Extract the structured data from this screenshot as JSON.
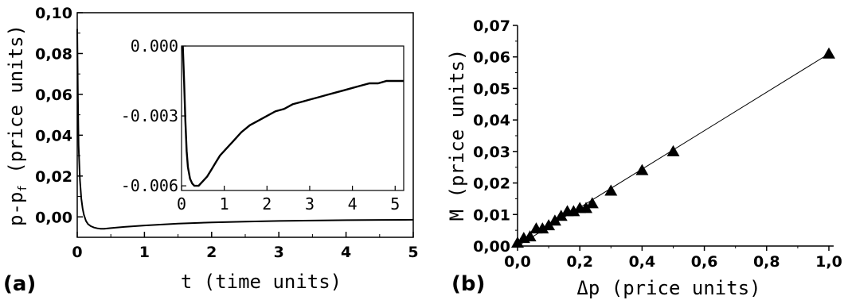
{
  "chart_data": [
    {
      "id": "a",
      "type": "line",
      "panel_label": "(a)",
      "xlabel": "t (time units)",
      "ylabel": {
        "prefix": "p-p",
        "subscript": "f",
        "suffix": " (price units)"
      },
      "xlim": [
        0,
        5
      ],
      "ylim": [
        -0.01,
        0.1
      ],
      "xticks": [
        0,
        1,
        2,
        3,
        4,
        5
      ],
      "xtick_labels": [
        "0",
        "1",
        "2",
        "3",
        "4",
        "5"
      ],
      "yticks": [
        0.0,
        0.02,
        0.04,
        0.06,
        0.08,
        0.1
      ],
      "ytick_labels": [
        "0,00",
        "0,02",
        "0,04",
        "0,06",
        "0,08",
        "0,10"
      ],
      "series": [
        {
          "x": [
            0,
            0.01,
            0.02,
            0.04,
            0.06,
            0.08,
            0.1,
            0.13,
            0.16,
            0.2,
            0.25,
            0.3,
            0.35,
            0.4,
            0.5,
            0.7,
            1.0,
            1.5,
            2.0,
            2.5,
            3.0,
            3.5,
            4.0,
            4.5,
            5.0
          ],
          "y": [
            0.092,
            0.06,
            0.035,
            0.018,
            0.009,
            0.004,
            0.001,
            -0.002,
            -0.0035,
            -0.0045,
            -0.0052,
            -0.0056,
            -0.0058,
            -0.0058,
            -0.0055,
            -0.0049,
            -0.0042,
            -0.0033,
            -0.0027,
            -0.0023,
            -0.002,
            -0.0018,
            -0.0016,
            -0.0015,
            -0.0014
          ]
        }
      ],
      "inset": {
        "xlim": [
          0,
          5.2
        ],
        "ylim": [
          -0.0062,
          0.0
        ],
        "xticks": [
          0,
          1,
          2,
          3,
          4,
          5
        ],
        "xtick_labels": [
          "0",
          "1",
          "2",
          "3",
          "4",
          "5"
        ],
        "yticks": [
          0.0,
          -0.003,
          -0.006
        ],
        "ytick_labels": [
          "0.000",
          "-0.003",
          "-0.006"
        ],
        "series": [
          {
            "x": [
              0.03,
              0.06,
              0.09,
              0.12,
              0.15,
              0.2,
              0.25,
              0.3,
              0.35,
              0.4,
              0.45,
              0.5,
              0.6,
              0.7,
              0.8,
              0.9,
              1.0,
              1.2,
              1.4,
              1.6,
              1.8,
              2.0,
              2.2,
              2.4,
              2.6,
              2.8,
              3.0,
              3.2,
              3.4,
              3.6,
              3.8,
              4.0,
              4.2,
              4.4,
              4.6,
              4.8,
              5.0,
              5.2
            ],
            "y": [
              0.0,
              -0.0015,
              -0.0032,
              -0.0045,
              -0.0052,
              -0.0057,
              -0.0059,
              -0.006,
              -0.006,
              -0.006,
              -0.0059,
              -0.0058,
              -0.0056,
              -0.0053,
              -0.005,
              -0.0047,
              -0.0045,
              -0.0041,
              -0.0037,
              -0.0034,
              -0.0032,
              -0.003,
              -0.0028,
              -0.0027,
              -0.0025,
              -0.0024,
              -0.0023,
              -0.0022,
              -0.0021,
              -0.002,
              -0.0019,
              -0.0018,
              -0.0017,
              -0.0016,
              -0.0016,
              -0.0015,
              -0.0015,
              -0.0015
            ]
          }
        ]
      }
    },
    {
      "id": "b",
      "type": "scatter",
      "panel_label": "(b)",
      "xlabel": "Δp (price units)",
      "ylabel": "M (price units)",
      "xlim": [
        0,
        1.0
      ],
      "ylim": [
        0,
        0.07
      ],
      "xticks": [
        0,
        0.2,
        0.4,
        0.6,
        0.8,
        1.0
      ],
      "xtick_labels": [
        "0,0",
        "0,2",
        "0,4",
        "0,6",
        "0,8",
        "1,0"
      ],
      "yticks": [
        0,
        0.01,
        0.02,
        0.03,
        0.04,
        0.05,
        0.06,
        0.07
      ],
      "ytick_labels": [
        "0,00",
        "0,01",
        "0,02",
        "0,03",
        "0,04",
        "0,05",
        "0,06",
        "0,07"
      ],
      "fit_line": {
        "x": [
          0,
          1.0
        ],
        "y": [
          0,
          0.061
        ]
      },
      "series": [
        {
          "x": [
            0.0,
            0.02,
            0.04,
            0.06,
            0.08,
            0.1,
            0.12,
            0.14,
            0.16,
            0.18,
            0.2,
            0.22,
            0.24,
            0.3,
            0.4,
            0.5,
            1.0
          ],
          "y": [
            0.001,
            0.0025,
            0.003,
            0.0055,
            0.0055,
            0.0065,
            0.008,
            0.0095,
            0.011,
            0.011,
            0.012,
            0.012,
            0.0135,
            0.0175,
            0.024,
            0.03,
            0.061
          ]
        }
      ]
    }
  ]
}
